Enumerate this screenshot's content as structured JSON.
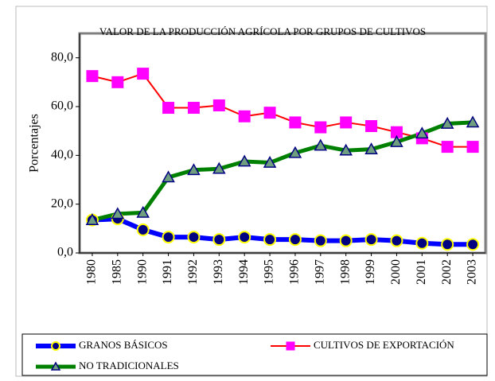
{
  "chart_data": {
    "type": "line",
    "title": "VALOR DE LA PRODUCCIÓN AGRÍCOLA POR GRUPOS DE CULTIVOS",
    "y_label": "Porcentajes",
    "categories": [
      "1980",
      "1985",
      "1990",
      "1991",
      "1992",
      "1993",
      "1994",
      "1995",
      "1996",
      "1997",
      "1998",
      "1999",
      "2000",
      "2001",
      "2002",
      "2003"
    ],
    "ylim": [
      0,
      90
    ],
    "yticks": [
      {
        "value": 0,
        "label": "0,0"
      },
      {
        "value": 20,
        "label": "20,0"
      },
      {
        "value": 40,
        "label": "40,0"
      },
      {
        "value": 60,
        "label": "60,0"
      },
      {
        "value": 80,
        "label": "80,0"
      }
    ],
    "grid": false,
    "legend": "bottom",
    "series": [
      {
        "name": "GRANOS BÁSICOS",
        "color": "#0000ff",
        "marker": "circle",
        "marker_color": "#000080",
        "marker_edge": "#ffff00",
        "values": [
          13.5,
          14,
          9.5,
          6.5,
          6.5,
          5.5,
          6.5,
          5.5,
          5.5,
          5,
          5,
          5.5,
          5,
          4,
          3.5,
          3.5
        ]
      },
      {
        "name": "CULTIVOS DE EXPORTACIÓN",
        "color": "#ff0000",
        "marker": "square",
        "marker_color": "#ff00ff",
        "marker_edge": "#ff00ff",
        "values": [
          72.5,
          70,
          73.5,
          59.5,
          59.5,
          60.5,
          56,
          57.5,
          53.5,
          51.5,
          53.5,
          52,
          49.5,
          47,
          43.5,
          43.5
        ]
      },
      {
        "name": "NO TRADICIONALES",
        "color": "#008000",
        "marker": "triangle",
        "marker_color": "#6f9f7f",
        "marker_edge": "#000080",
        "values": [
          13.5,
          16,
          16.5,
          31,
          34,
          34.5,
          37.5,
          37,
          41,
          44,
          42,
          42.5,
          45.5,
          49,
          53,
          53.5
        ]
      }
    ]
  }
}
